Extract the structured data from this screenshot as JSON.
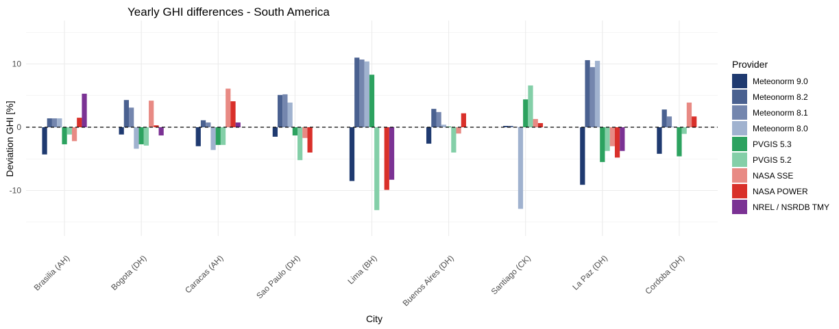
{
  "chart_data": {
    "type": "bar",
    "title": "Yearly GHI differences - South America",
    "xlabel": "City",
    "ylabel": "Deviation GHI [%]",
    "ylim": [
      -17.2,
      16.9
    ],
    "yticks": [
      -10,
      0,
      10
    ],
    "grid": true,
    "reference_line": {
      "y": 0,
      "style": "dashed"
    },
    "legend": {
      "title": "Provider",
      "placement": "right"
    },
    "categories": [
      "Brasilia (AH)",
      "Bogota (DH)",
      "Caracas (AH)",
      "Sao Paulo (DH)",
      "Lima (BH)",
      "Buenos Aires (DH)",
      "Santiago (CK)",
      "La Paz (DH)",
      "Cordoba (DH)"
    ],
    "series": [
      {
        "name": "Meteonorm 9.0",
        "color": "#1f3a70",
        "values": [
          -4.3,
          -1.15,
          -3.0,
          -1.5,
          -8.5,
          -2.6,
          0.2,
          -9.1,
          -4.2
        ]
      },
      {
        "name": "Meteonorm 8.2",
        "color": "#4a6190",
        "values": [
          1.4,
          4.3,
          1.1,
          5.1,
          11.0,
          2.9,
          0.2,
          10.6,
          2.8
        ]
      },
      {
        "name": "Meteonorm 8.1",
        "color": "#7486ae",
        "values": [
          1.4,
          3.1,
          0.75,
          5.2,
          10.7,
          2.4,
          0.05,
          9.5,
          1.7
        ]
      },
      {
        "name": "Meteonorm 8.0",
        "color": "#a0b2cf",
        "values": [
          1.4,
          -3.4,
          -3.6,
          3.9,
          10.4,
          0.4,
          -12.9,
          10.5,
          0.1
        ]
      },
      {
        "name": "PVGIS 5.3",
        "color": "#2ca25f",
        "values": [
          -2.7,
          -2.7,
          -2.8,
          -1.3,
          8.3,
          0.1,
          4.4,
          -5.5,
          -4.6
        ]
      },
      {
        "name": "PVGIS 5.2",
        "color": "#84cfa8",
        "values": [
          -1.15,
          -2.9,
          -2.8,
          -5.2,
          -13.1,
          -4.0,
          6.6,
          -3.75,
          -1.05
        ]
      },
      {
        "name": "NASA SSE",
        "color": "#e88a84",
        "values": [
          -2.2,
          4.2,
          6.1,
          -1.7,
          0.0,
          -1.0,
          1.3,
          -3.0,
          3.9
        ]
      },
      {
        "name": "NASA POWER",
        "color": "#d9302a",
        "values": [
          1.5,
          0.3,
          4.1,
          -4.0,
          -9.9,
          2.2,
          0.65,
          -4.8,
          1.7
        ]
      },
      {
        "name": "NREL / NSRDB TMY",
        "color": "#7b3294",
        "values": [
          5.3,
          -1.3,
          0.75,
          0,
          -8.3,
          0,
          0,
          -3.75,
          0
        ]
      }
    ]
  }
}
